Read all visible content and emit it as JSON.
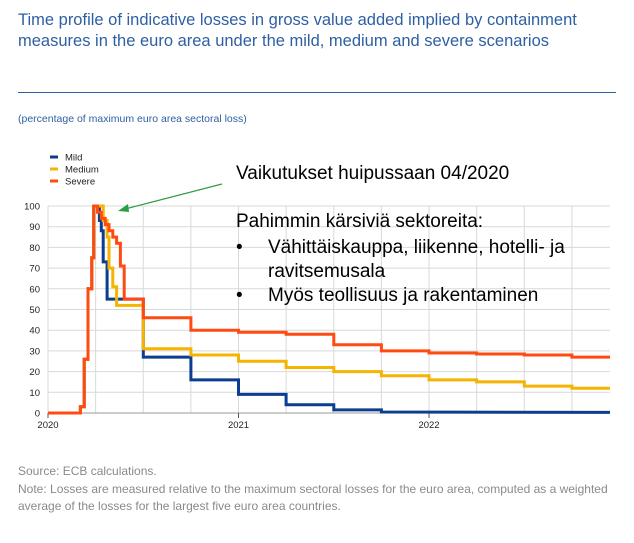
{
  "title": "Time profile of indicative losses in gross value added implied by containment measures in the euro area under the mild, medium and severe scenarios",
  "subtitle": "(percentage of maximum euro area sectoral loss)",
  "source": "Source: ECB calculations.",
  "note": "Note: Losses are measured relative to the maximum sectoral losses for the euro area, computed as a weighted average of the losses for the largest five euro area countries.",
  "annotation": {
    "title": "Vaikutukset huipussaan 04/2020",
    "heading": "Pahimmin kärsiviä sektoreita:",
    "bullets": [
      "Vähittäiskauppa, liikenne, hotelli- ja ravitsemusala",
      "Myös teollisuus ja rakentaminen"
    ],
    "bullet_glyph": "•",
    "arrow_color": "#2e9e44"
  },
  "chart_data": {
    "type": "line",
    "title": "Time profile of indicative losses in gross value added implied by containment measures in the euro area under the mild, medium and severe scenarios",
    "ylabel": "(percentage of maximum euro area sectoral loss)",
    "xlabel": "",
    "xlim": [
      2020.0,
      2022.95
    ],
    "ylim": [
      0,
      100
    ],
    "yticks": [
      0,
      10,
      20,
      30,
      40,
      50,
      60,
      70,
      80,
      90,
      100
    ],
    "xticks": [
      {
        "value": 2020,
        "label": "2020"
      },
      {
        "value": 2021,
        "label": "2021"
      },
      {
        "value": 2022,
        "label": "2022"
      }
    ],
    "grid": true,
    "legend_position": "top-left",
    "series": [
      {
        "name": "Mild",
        "color": "#0b3d91",
        "points": [
          [
            2020.0,
            0
          ],
          [
            2020.17,
            0
          ],
          [
            2020.17,
            3
          ],
          [
            2020.19,
            3
          ],
          [
            2020.19,
            26
          ],
          [
            2020.21,
            26
          ],
          [
            2020.21,
            60
          ],
          [
            2020.23,
            60
          ],
          [
            2020.23,
            75
          ],
          [
            2020.24,
            75
          ],
          [
            2020.24,
            100
          ],
          [
            2020.27,
            100
          ],
          [
            2020.27,
            93
          ],
          [
            2020.28,
            93
          ],
          [
            2020.28,
            88
          ],
          [
            2020.29,
            88
          ],
          [
            2020.29,
            73
          ],
          [
            2020.31,
            73
          ],
          [
            2020.31,
            55
          ],
          [
            2020.5,
            55
          ],
          [
            2020.5,
            27
          ],
          [
            2020.75,
            27
          ],
          [
            2020.75,
            16
          ],
          [
            2021.0,
            16
          ],
          [
            2021.0,
            9
          ],
          [
            2021.25,
            9
          ],
          [
            2021.25,
            4
          ],
          [
            2021.5,
            4
          ],
          [
            2021.5,
            1.5
          ],
          [
            2021.75,
            1.5
          ],
          [
            2021.75,
            0.5
          ],
          [
            2022.95,
            0.3
          ]
        ]
      },
      {
        "name": "Medium",
        "color": "#f5b400",
        "points": [
          [
            2020.0,
            0
          ],
          [
            2020.17,
            0
          ],
          [
            2020.17,
            3
          ],
          [
            2020.19,
            3
          ],
          [
            2020.19,
            26
          ],
          [
            2020.21,
            26
          ],
          [
            2020.21,
            60
          ],
          [
            2020.23,
            60
          ],
          [
            2020.23,
            75
          ],
          [
            2020.24,
            75
          ],
          [
            2020.24,
            100
          ],
          [
            2020.29,
            100
          ],
          [
            2020.29,
            93
          ],
          [
            2020.31,
            93
          ],
          [
            2020.31,
            85
          ],
          [
            2020.32,
            85
          ],
          [
            2020.32,
            70
          ],
          [
            2020.34,
            70
          ],
          [
            2020.34,
            61
          ],
          [
            2020.36,
            61
          ],
          [
            2020.36,
            52
          ],
          [
            2020.5,
            52
          ],
          [
            2020.5,
            31
          ],
          [
            2020.75,
            31
          ],
          [
            2020.75,
            28
          ],
          [
            2021.0,
            28
          ],
          [
            2021.0,
            25
          ],
          [
            2021.25,
            25
          ],
          [
            2021.25,
            22
          ],
          [
            2021.5,
            22
          ],
          [
            2021.5,
            20
          ],
          [
            2021.75,
            20
          ],
          [
            2021.75,
            18
          ],
          [
            2022.0,
            18
          ],
          [
            2022.0,
            16
          ],
          [
            2022.25,
            16
          ],
          [
            2022.25,
            15
          ],
          [
            2022.5,
            15
          ],
          [
            2022.5,
            13
          ],
          [
            2022.75,
            13
          ],
          [
            2022.75,
            12
          ],
          [
            2022.95,
            12
          ]
        ]
      },
      {
        "name": "Severe",
        "color": "#ff4b12",
        "points": [
          [
            2020.0,
            0
          ],
          [
            2020.17,
            0
          ],
          [
            2020.17,
            3
          ],
          [
            2020.19,
            3
          ],
          [
            2020.19,
            26
          ],
          [
            2020.21,
            26
          ],
          [
            2020.21,
            60
          ],
          [
            2020.23,
            60
          ],
          [
            2020.23,
            75
          ],
          [
            2020.24,
            75
          ],
          [
            2020.24,
            100
          ],
          [
            2020.26,
            100
          ],
          [
            2020.26,
            97
          ],
          [
            2020.28,
            97
          ],
          [
            2020.28,
            94
          ],
          [
            2020.3,
            94
          ],
          [
            2020.3,
            91
          ],
          [
            2020.32,
            91
          ],
          [
            2020.32,
            88
          ],
          [
            2020.34,
            88
          ],
          [
            2020.34,
            85
          ],
          [
            2020.36,
            85
          ],
          [
            2020.36,
            82
          ],
          [
            2020.38,
            82
          ],
          [
            2020.38,
            71
          ],
          [
            2020.4,
            71
          ],
          [
            2020.4,
            55
          ],
          [
            2020.5,
            55
          ],
          [
            2020.5,
            46
          ],
          [
            2020.75,
            46
          ],
          [
            2020.75,
            40
          ],
          [
            2021.0,
            40
          ],
          [
            2021.0,
            39
          ],
          [
            2021.25,
            39
          ],
          [
            2021.25,
            38
          ],
          [
            2021.5,
            38
          ],
          [
            2021.5,
            33
          ],
          [
            2021.75,
            33
          ],
          [
            2021.75,
            30
          ],
          [
            2022.0,
            30
          ],
          [
            2022.0,
            29
          ],
          [
            2022.25,
            29
          ],
          [
            2022.25,
            28.5
          ],
          [
            2022.5,
            28.5
          ],
          [
            2022.5,
            28
          ],
          [
            2022.75,
            28
          ],
          [
            2022.75,
            27
          ],
          [
            2022.95,
            27
          ]
        ]
      }
    ]
  }
}
